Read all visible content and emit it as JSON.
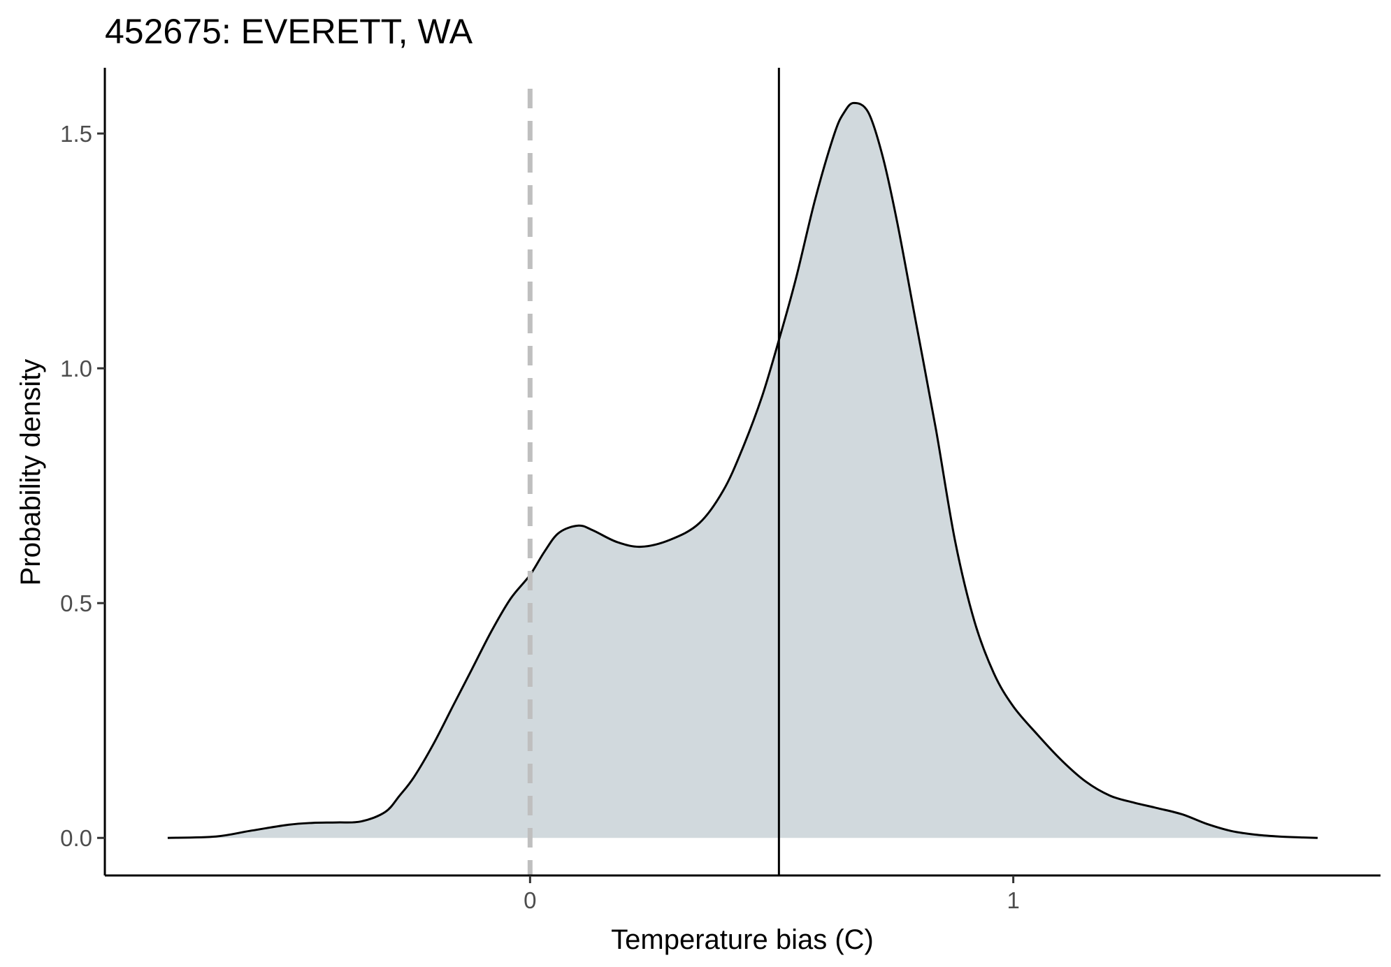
{
  "chart_data": {
    "type": "area",
    "title": "452675: EVERETT, WA",
    "xlabel": "Temperature bias (C)",
    "ylabel": "Probability density",
    "xlim": [
      -0.88,
      1.76
    ],
    "ylim": [
      -0.08,
      1.64
    ],
    "x_ticks": [
      0,
      1
    ],
    "x_tick_labels": [
      "0",
      "1"
    ],
    "y_ticks": [
      0.0,
      0.5,
      1.0,
      1.5
    ],
    "y_tick_labels": [
      "0.0",
      "0.5",
      "1.0",
      "1.5"
    ],
    "grid": false,
    "legend": "none",
    "colors": {
      "fill": "#d1d9dd",
      "line": "#000000",
      "reference_line": "#bfbfbf",
      "mean_line": "#000000"
    },
    "reference_line": {
      "x": 0.0,
      "style": "dashed"
    },
    "mean_line": {
      "x": 0.515,
      "style": "solid"
    },
    "series": [
      {
        "x": [
          -0.75,
          -0.65,
          -0.58,
          -0.5,
          -0.45,
          -0.4,
          -0.35,
          -0.3,
          -0.27,
          -0.24,
          -0.2,
          -0.16,
          -0.12,
          -0.08,
          -0.04,
          0.0,
          0.03,
          0.06,
          0.1,
          0.13,
          0.18,
          0.23,
          0.29,
          0.35,
          0.4,
          0.44,
          0.48,
          0.515,
          0.55,
          0.59,
          0.63,
          0.65,
          0.67,
          0.7,
          0.73,
          0.76,
          0.8,
          0.84,
          0.88,
          0.92,
          0.96,
          1.0,
          1.05,
          1.1,
          1.15,
          1.2,
          1.25,
          1.3,
          1.35,
          1.4,
          1.45,
          1.5,
          1.55,
          1.6,
          1.63
        ],
        "y": [
          0.0,
          0.003,
          0.015,
          0.028,
          0.032,
          0.033,
          0.035,
          0.055,
          0.09,
          0.13,
          0.2,
          0.28,
          0.36,
          0.44,
          0.51,
          0.56,
          0.61,
          0.65,
          0.665,
          0.655,
          0.63,
          0.62,
          0.635,
          0.67,
          0.74,
          0.83,
          0.94,
          1.06,
          1.19,
          1.36,
          1.5,
          1.545,
          1.565,
          1.545,
          1.45,
          1.31,
          1.09,
          0.87,
          0.63,
          0.46,
          0.35,
          0.28,
          0.22,
          0.165,
          0.12,
          0.09,
          0.075,
          0.063,
          0.05,
          0.03,
          0.015,
          0.007,
          0.003,
          0.001,
          0.0
        ]
      }
    ]
  }
}
